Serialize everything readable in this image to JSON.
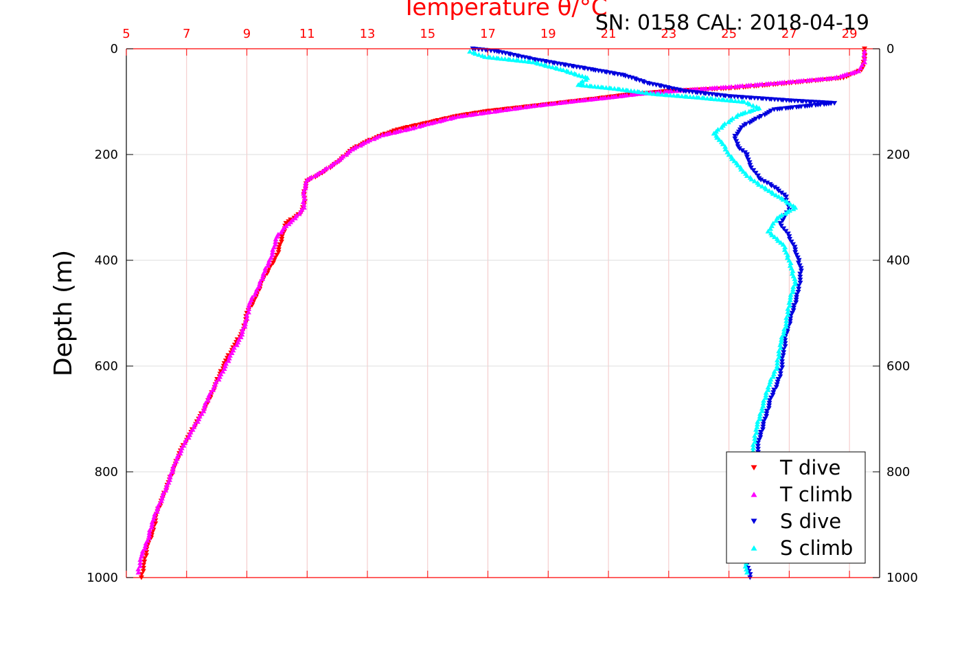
{
  "chart_data": {
    "type": "scatter",
    "title": "Temperature θ/°C",
    "annotation": "SN: 0158  CAL: 2018-04-19",
    "ylabel": "Depth (m)",
    "xlabel": "",
    "xlim": [
      5,
      30
    ],
    "ylim": [
      0,
      1000
    ],
    "y_reversed": true,
    "x_ticks": [
      5,
      7,
      9,
      11,
      13,
      15,
      17,
      19,
      21,
      23,
      25,
      27,
      29
    ],
    "y_ticks": [
      0,
      200,
      400,
      600,
      800,
      1000
    ],
    "grid": true,
    "legend_position": "bottom-right",
    "note_salinity": "S series plotted on a secondary, unlabeled salinity scale; x values expressed in temperature-axis units",
    "series": [
      {
        "name": "T dive",
        "color": "#ff0000",
        "marker": "triangle-down",
        "points": [
          [
            29.5,
            0
          ],
          [
            29.5,
            20
          ],
          [
            29.4,
            40
          ],
          [
            28.8,
            55
          ],
          [
            27.0,
            65
          ],
          [
            25.0,
            75
          ],
          [
            23.0,
            80
          ],
          [
            21.5,
            88
          ],
          [
            20.5,
            95
          ],
          [
            19.0,
            105
          ],
          [
            17.0,
            118
          ],
          [
            16.0,
            127
          ],
          [
            15.0,
            140
          ],
          [
            14.0,
            153
          ],
          [
            13.5,
            163
          ],
          [
            13.0,
            175
          ],
          [
            12.5,
            190
          ],
          [
            12.0,
            215
          ],
          [
            11.5,
            235
          ],
          [
            11.0,
            250
          ],
          [
            10.9,
            270
          ],
          [
            10.9,
            295
          ],
          [
            10.8,
            310
          ],
          [
            10.3,
            330
          ],
          [
            10.2,
            350
          ],
          [
            10.1,
            370
          ],
          [
            10.0,
            390
          ],
          [
            9.8,
            410
          ],
          [
            9.5,
            440
          ],
          [
            9.3,
            470
          ],
          [
            9.0,
            500
          ],
          [
            8.9,
            530
          ],
          [
            8.6,
            560
          ],
          [
            8.3,
            590
          ],
          [
            8.0,
            630
          ],
          [
            7.7,
            670
          ],
          [
            7.4,
            700
          ],
          [
            7.1,
            730
          ],
          [
            6.8,
            760
          ],
          [
            6.6,
            790
          ],
          [
            6.4,
            820
          ],
          [
            6.2,
            850
          ],
          [
            6.0,
            880
          ],
          [
            5.9,
            910
          ],
          [
            5.7,
            940
          ],
          [
            5.6,
            970
          ],
          [
            5.5,
            1000
          ]
        ]
      },
      {
        "name": "T climb",
        "color": "#ff00ff",
        "marker": "triangle-up",
        "points": [
          [
            29.5,
            5
          ],
          [
            29.5,
            25
          ],
          [
            29.3,
            42
          ],
          [
            28.5,
            55
          ],
          [
            26.5,
            65
          ],
          [
            25.0,
            72
          ],
          [
            23.5,
            78
          ],
          [
            22.0,
            85
          ],
          [
            21.0,
            92
          ],
          [
            20.0,
            98
          ],
          [
            18.5,
            108
          ],
          [
            17.0,
            120
          ],
          [
            16.0,
            128
          ],
          [
            15.0,
            142
          ],
          [
            14.5,
            150
          ],
          [
            13.5,
            163
          ],
          [
            13.0,
            175
          ],
          [
            12.5,
            190
          ],
          [
            12.0,
            213
          ],
          [
            11.5,
            232
          ],
          [
            11.0,
            248
          ],
          [
            10.9,
            268
          ],
          [
            10.9,
            300
          ],
          [
            10.6,
            320
          ],
          [
            10.3,
            335
          ],
          [
            10.0,
            355
          ],
          [
            9.9,
            375
          ],
          [
            9.8,
            395
          ],
          [
            9.6,
            420
          ],
          [
            9.4,
            450
          ],
          [
            9.1,
            480
          ],
          [
            9.0,
            510
          ],
          [
            8.8,
            545
          ],
          [
            8.5,
            575
          ],
          [
            8.2,
            610
          ],
          [
            7.8,
            650
          ],
          [
            7.5,
            690
          ],
          [
            7.2,
            720
          ],
          [
            6.9,
            750
          ],
          [
            6.6,
            785
          ],
          [
            6.4,
            820
          ],
          [
            6.1,
            860
          ],
          [
            5.9,
            890
          ],
          [
            5.7,
            930
          ],
          [
            5.5,
            960
          ],
          [
            5.4,
            990
          ]
        ]
      },
      {
        "name": "S dive",
        "color": "#0000dd",
        "marker": "triangle-down",
        "points": [
          [
            16.5,
            0
          ],
          [
            17.3,
            5
          ],
          [
            18.5,
            20
          ],
          [
            20.5,
            40
          ],
          [
            21.5,
            50
          ],
          [
            22.3,
            65
          ],
          [
            23.5,
            80
          ],
          [
            25.0,
            90
          ],
          [
            27.0,
            98
          ],
          [
            28.5,
            103
          ],
          [
            26.5,
            115
          ],
          [
            26.0,
            130
          ],
          [
            25.5,
            145
          ],
          [
            25.2,
            165
          ],
          [
            25.3,
            185
          ],
          [
            25.6,
            200
          ],
          [
            25.7,
            220
          ],
          [
            26.0,
            245
          ],
          [
            26.6,
            265
          ],
          [
            26.9,
            280
          ],
          [
            27.0,
            305
          ],
          [
            26.7,
            330
          ],
          [
            27.0,
            355
          ],
          [
            27.2,
            380
          ],
          [
            27.4,
            420
          ],
          [
            27.3,
            460
          ],
          [
            27.1,
            500
          ],
          [
            26.9,
            540
          ],
          [
            26.8,
            580
          ],
          [
            26.7,
            620
          ],
          [
            26.4,
            660
          ],
          [
            26.2,
            700
          ],
          [
            26.0,
            740
          ],
          [
            25.9,
            780
          ],
          [
            25.8,
            820
          ],
          [
            25.8,
            860
          ],
          [
            25.7,
            900
          ],
          [
            25.6,
            940
          ],
          [
            25.6,
            970
          ],
          [
            25.7,
            1000
          ]
        ]
      },
      {
        "name": "S climb",
        "color": "#00ffff",
        "marker": "triangle-up",
        "points": [
          [
            16.4,
            5
          ],
          [
            16.9,
            15
          ],
          [
            18.5,
            25
          ],
          [
            19.5,
            40
          ],
          [
            20.3,
            55
          ],
          [
            20.0,
            68
          ],
          [
            21.2,
            75
          ],
          [
            22.5,
            85
          ],
          [
            24.0,
            92
          ],
          [
            25.5,
            100
          ],
          [
            26.0,
            112
          ],
          [
            25.3,
            125
          ],
          [
            24.8,
            145
          ],
          [
            24.5,
            160
          ],
          [
            24.8,
            180
          ],
          [
            25.0,
            200
          ],
          [
            25.3,
            220
          ],
          [
            25.6,
            240
          ],
          [
            26.1,
            260
          ],
          [
            26.8,
            285
          ],
          [
            27.2,
            300
          ],
          [
            26.6,
            320
          ],
          [
            26.3,
            345
          ],
          [
            26.8,
            370
          ],
          [
            27.0,
            400
          ],
          [
            27.2,
            440
          ],
          [
            27.0,
            480
          ],
          [
            26.9,
            520
          ],
          [
            26.7,
            560
          ],
          [
            26.6,
            600
          ],
          [
            26.3,
            640
          ],
          [
            26.1,
            680
          ],
          [
            25.9,
            720
          ],
          [
            25.8,
            760
          ],
          [
            25.7,
            800
          ],
          [
            25.7,
            850
          ],
          [
            25.6,
            900
          ],
          [
            25.5,
            950
          ],
          [
            25.6,
            990
          ]
        ]
      }
    ]
  }
}
